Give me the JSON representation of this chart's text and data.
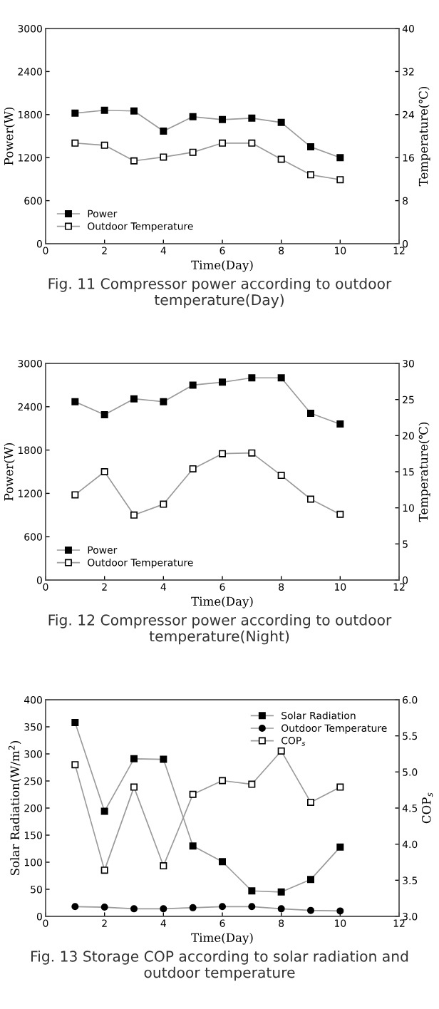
{
  "chart_data": [
    {
      "type": "line",
      "xlabel": "Time(Day)",
      "ylabel": "Power(W)",
      "y2label": "Temperature(℃)",
      "annotations": [
        "Fig. 11 Compressor power according to outdoor temperature(Day)"
      ],
      "x": [
        1,
        2,
        3,
        4,
        5,
        6,
        7,
        8,
        9,
        10
      ],
      "xlim": [
        0,
        12
      ],
      "xticks": [
        0,
        2,
        4,
        6,
        8,
        10,
        12
      ],
      "ylim": [
        0,
        3000
      ],
      "yticks": [
        0,
        600,
        1200,
        1800,
        2400,
        3000
      ],
      "y2lim": [
        0,
        40
      ],
      "y2ticks": [
        0,
        8,
        16,
        24,
        32,
        40
      ],
      "grid": false,
      "legend": "bottom left",
      "series": [
        {
          "name": "Power",
          "color": "#000000",
          "marker": "square",
          "values": [
            1820,
            1860,
            1850,
            1570,
            1770,
            1730,
            1750,
            1690,
            1350,
            1200
          ]
        },
        {
          "name": "Outdoor Temperature",
          "color": "#ffffff",
          "marker": "square",
          "axis": "y2",
          "values": [
            18.7,
            18.3,
            15.4,
            16.1,
            17.0,
            18.7,
            18.7,
            15.7,
            12.8,
            11.9
          ]
        }
      ]
    },
    {
      "type": "line",
      "xlabel": "Time(Day)",
      "ylabel": "Power(W)",
      "y2label": "Temperature(℃)",
      "annotations": [
        "Fig. 12 Compressor power according to outdoor temperature(Night)"
      ],
      "x": [
        1,
        2,
        3,
        4,
        5,
        6,
        7,
        8,
        9,
        10
      ],
      "xlim": [
        0,
        12
      ],
      "xticks": [
        0,
        2,
        4,
        6,
        8,
        10,
        12
      ],
      "ylim": [
        0,
        3000
      ],
      "yticks": [
        0,
        600,
        1200,
        1800,
        2400,
        3000
      ],
      "y2lim": [
        0,
        30
      ],
      "y2ticks": [
        0,
        5,
        10,
        15,
        20,
        25,
        30
      ],
      "grid": false,
      "legend": "bottom left",
      "series": [
        {
          "name": "Power",
          "color": "#000000",
          "marker": "square",
          "values": [
            2470,
            2290,
            2510,
            2470,
            2700,
            2740,
            2800,
            2800,
            2310,
            2160
          ]
        },
        {
          "name": "Outdoor Temperature",
          "color": "#ffffff",
          "marker": "square",
          "axis": "y2",
          "values": [
            11.8,
            15.0,
            9.0,
            10.5,
            15.4,
            17.5,
            17.6,
            14.5,
            11.2,
            9.1
          ]
        }
      ]
    },
    {
      "type": "line",
      "xlabel": "Time(Day)",
      "ylabel": "Solar Radiation(W/m$^{2}$)",
      "y2label": "COP$_{s}$",
      "annotations": [
        "Fig. 13 Storage COP according to solar radiation and outdoor temperature"
      ],
      "x": [
        1,
        2,
        3,
        4,
        5,
        6,
        7,
        8,
        9,
        10
      ],
      "xlim": [
        0,
        12
      ],
      "xticks": [
        0,
        2,
        4,
        6,
        8,
        10,
        12
      ],
      "ylim": [
        0,
        400
      ],
      "yticks": [
        0,
        50,
        100,
        150,
        200,
        250,
        300,
        350,
        400
      ],
      "y2lim": [
        3.0,
        6.0
      ],
      "y2ticks": [
        {
          "value": 3.0,
          "label": "3.0"
        },
        3.5,
        {
          "value": 4.0,
          "label": "4.0"
        },
        4.5,
        {
          "value": 5.0,
          "label": "5.0"
        },
        5.5,
        {
          "value": 6.0,
          "label": "6.0"
        }
      ],
      "grid": false,
      "legend": "top right",
      "series": [
        {
          "name": "Solar Radiation",
          "color": "#000000",
          "marker": "square",
          "values": [
            358,
            194,
            291,
            290,
            130,
            101,
            47,
            45,
            68,
            128
          ]
        },
        {
          "name": "Outdoor Temperature",
          "color": "#000000",
          "marker": "circle",
          "values": [
            18,
            17,
            14,
            14,
            16,
            18,
            18,
            14,
            11,
            10
          ]
        },
        {
          "name": "COP$_{s}$",
          "color": "#ffffff",
          "marker": "square",
          "axis": "y2",
          "values": [
            5.1,
            3.64,
            4.79,
            3.7,
            4.69,
            4.88,
            4.83,
            5.29,
            4.58,
            4.79
          ]
        }
      ]
    }
  ]
}
